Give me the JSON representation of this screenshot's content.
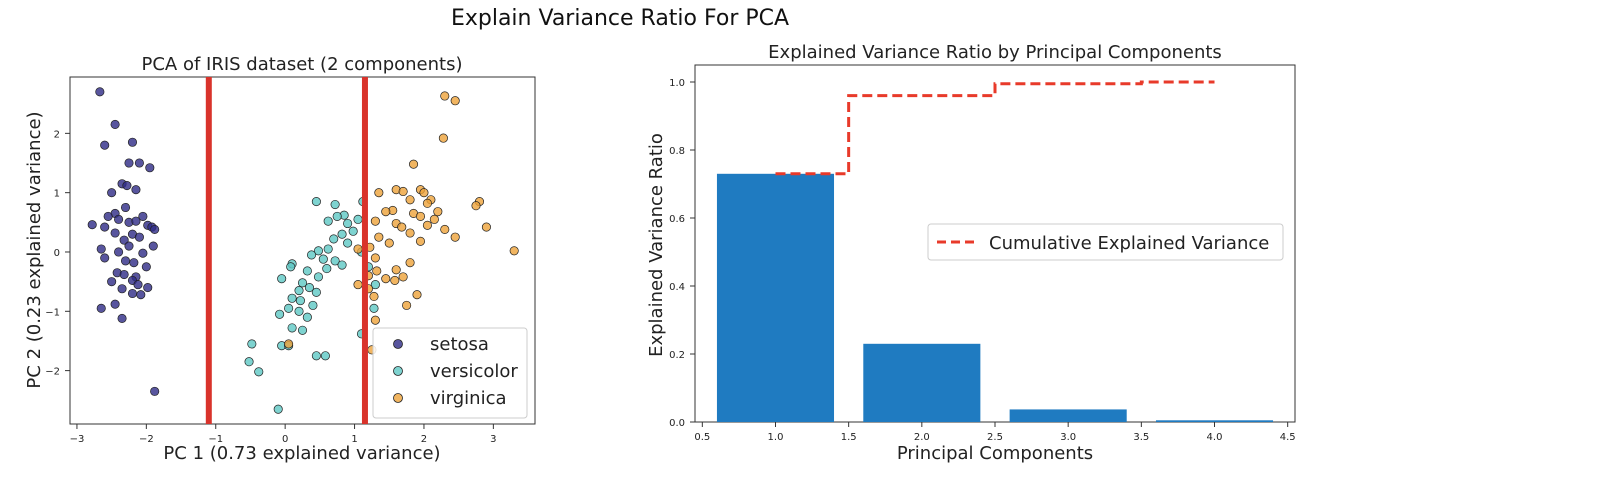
{
  "page": {
    "title": "Explain Variance Ratio For PCA"
  },
  "colors": {
    "setosa": "#2e2a86",
    "versicolor": "#5ec8c4",
    "virginica": "#eea23a",
    "bar": "#1f7bc1",
    "cumulative": "#e83a2a",
    "vline": "#d9332b"
  },
  "chart_data": [
    {
      "type": "scatter",
      "title": "PCA of IRIS dataset (2 components)",
      "xlabel": "PC 1 (0.73 explained variance)",
      "ylabel": "PC 2 (0.23 explained variance)",
      "xlim": [
        -3.1,
        3.6
      ],
      "ylim": [
        -2.9,
        2.95
      ],
      "xticks": [
        -3,
        -2,
        -1,
        0,
        1,
        2,
        3
      ],
      "yticks": [
        -2,
        -1,
        0,
        1,
        2
      ],
      "xtick_labels": [
        "−3",
        "−2",
        "−1",
        "0",
        "1",
        "2",
        "3"
      ],
      "ytick_labels": [
        "−2",
        "−1",
        "0",
        "1",
        "2"
      ],
      "vertical_lines": [
        -1.1,
        1.15
      ],
      "legend": {
        "position": "lower-right",
        "entries": [
          "setosa",
          "versicolor",
          "virginica"
        ]
      },
      "series": [
        {
          "name": "setosa",
          "points": [
            [
              -2.67,
              2.7
            ],
            [
              -2.45,
              2.15
            ],
            [
              -2.6,
              1.8
            ],
            [
              -2.2,
              1.85
            ],
            [
              -2.25,
              1.5
            ],
            [
              -2.1,
              1.5
            ],
            [
              -1.95,
              1.42
            ],
            [
              -2.35,
              1.15
            ],
            [
              -2.28,
              1.12
            ],
            [
              -2.5,
              1.0
            ],
            [
              -2.15,
              1.05
            ],
            [
              -2.45,
              0.65
            ],
            [
              -2.3,
              0.75
            ],
            [
              -2.55,
              0.6
            ],
            [
              -2.05,
              0.6
            ],
            [
              -2.4,
              0.55
            ],
            [
              -2.25,
              0.5
            ],
            [
              -2.15,
              0.52
            ],
            [
              -1.98,
              0.45
            ],
            [
              -1.92,
              0.42
            ],
            [
              -1.88,
              0.38
            ],
            [
              -2.78,
              0.46
            ],
            [
              -2.6,
              0.42
            ],
            [
              -2.45,
              0.32
            ],
            [
              -2.2,
              0.3
            ],
            [
              -2.1,
              0.25
            ],
            [
              -2.32,
              0.2
            ],
            [
              -2.25,
              0.1
            ],
            [
              -1.9,
              0.1
            ],
            [
              -2.65,
              0.05
            ],
            [
              -2.4,
              0.0
            ],
            [
              -2.05,
              -0.02
            ],
            [
              -2.6,
              -0.1
            ],
            [
              -2.3,
              -0.15
            ],
            [
              -2.18,
              -0.18
            ],
            [
              -2.0,
              -0.25
            ],
            [
              -2.42,
              -0.35
            ],
            [
              -2.32,
              -0.38
            ],
            [
              -2.15,
              -0.42
            ],
            [
              -2.5,
              -0.5
            ],
            [
              -2.2,
              -0.48
            ],
            [
              -2.12,
              -0.55
            ],
            [
              -2.35,
              -0.62
            ],
            [
              -1.98,
              -0.6
            ],
            [
              -2.2,
              -0.7
            ],
            [
              -2.08,
              -0.72
            ],
            [
              -2.45,
              -0.88
            ],
            [
              -2.65,
              -0.95
            ],
            [
              -2.35,
              -1.12
            ],
            [
              -1.88,
              -2.35
            ]
          ]
        },
        {
          "name": "versicolor",
          "points": [
            [
              0.45,
              0.85
            ],
            [
              0.72,
              0.8
            ],
            [
              0.85,
              0.62
            ],
            [
              0.75,
              0.6
            ],
            [
              0.62,
              0.52
            ],
            [
              0.9,
              0.48
            ],
            [
              1.05,
              0.55
            ],
            [
              0.98,
              0.35
            ],
            [
              0.82,
              0.3
            ],
            [
              0.7,
              0.22
            ],
            [
              0.9,
              0.15
            ],
            [
              0.62,
              0.05
            ],
            [
              0.48,
              0.02
            ],
            [
              0.38,
              -0.05
            ],
            [
              0.55,
              -0.12
            ],
            [
              0.72,
              -0.15
            ],
            [
              0.82,
              -0.22
            ],
            [
              0.1,
              -0.2
            ],
            [
              0.08,
              -0.25
            ],
            [
              0.6,
              -0.28
            ],
            [
              0.32,
              -0.32
            ],
            [
              0.48,
              -0.42
            ],
            [
              -0.05,
              -0.45
            ],
            [
              0.25,
              -0.52
            ],
            [
              0.35,
              -0.6
            ],
            [
              0.45,
              -0.68
            ],
            [
              0.2,
              -0.65
            ],
            [
              0.1,
              -0.78
            ],
            [
              0.22,
              -0.82
            ],
            [
              0.4,
              -0.9
            ],
            [
              0.05,
              -0.95
            ],
            [
              0.2,
              -1.0
            ],
            [
              -0.08,
              -1.05
            ],
            [
              0.32,
              -1.1
            ],
            [
              0.1,
              -1.28
            ],
            [
              0.25,
              -1.32
            ],
            [
              -0.05,
              -1.58
            ],
            [
              0.05,
              -1.58
            ],
            [
              -0.48,
              -1.55
            ],
            [
              0.45,
              -1.75
            ],
            [
              0.58,
              -1.75
            ],
            [
              -0.52,
              -1.85
            ],
            [
              -0.38,
              -2.02
            ],
            [
              -0.1,
              -2.65
            ],
            [
              1.1,
              -1.38
            ],
            [
              1.28,
              -0.95
            ],
            [
              1.3,
              -0.55
            ],
            [
              1.2,
              -0.25
            ],
            [
              1.1,
              0.0
            ],
            [
              1.12,
              0.85
            ]
          ]
        },
        {
          "name": "virginica",
          "points": [
            [
              2.3,
              2.63
            ],
            [
              2.45,
              2.55
            ],
            [
              2.28,
              1.92
            ],
            [
              1.85,
              1.48
            ],
            [
              1.6,
              1.05
            ],
            [
              1.7,
              1.02
            ],
            [
              1.35,
              1.0
            ],
            [
              1.95,
              1.05
            ],
            [
              2.0,
              1.0
            ],
            [
              2.1,
              0.88
            ],
            [
              1.8,
              0.88
            ],
            [
              2.05,
              0.82
            ],
            [
              2.8,
              0.85
            ],
            [
              2.75,
              0.78
            ],
            [
              1.55,
              0.7
            ],
            [
              1.45,
              0.68
            ],
            [
              2.2,
              0.68
            ],
            [
              1.85,
              0.65
            ],
            [
              1.95,
              0.6
            ],
            [
              2.15,
              0.55
            ],
            [
              1.3,
              0.52
            ],
            [
              1.6,
              0.48
            ],
            [
              2.05,
              0.45
            ],
            [
              1.68,
              0.42
            ],
            [
              2.3,
              0.38
            ],
            [
              1.8,
              0.32
            ],
            [
              2.9,
              0.42
            ],
            [
              1.35,
              0.25
            ],
            [
              2.45,
              0.25
            ],
            [
              1.95,
              0.18
            ],
            [
              1.5,
              0.15
            ],
            [
              1.22,
              0.08
            ],
            [
              1.05,
              0.05
            ],
            [
              1.3,
              -0.1
            ],
            [
              1.8,
              -0.18
            ],
            [
              1.6,
              -0.3
            ],
            [
              1.32,
              -0.32
            ],
            [
              1.2,
              -0.4
            ],
            [
              1.7,
              -0.42
            ],
            [
              1.45,
              -0.45
            ],
            [
              1.58,
              -0.48
            ],
            [
              1.05,
              -0.55
            ],
            [
              1.2,
              -0.62
            ],
            [
              1.28,
              -0.75
            ],
            [
              1.9,
              -0.72
            ],
            [
              1.75,
              -0.9
            ],
            [
              1.3,
              -1.15
            ],
            [
              0.05,
              -1.55
            ],
            [
              1.25,
              -1.65
            ],
            [
              3.3,
              0.02
            ]
          ]
        }
      ]
    },
    {
      "type": "bar",
      "title": "Explained Variance Ratio by Principal Components",
      "xlabel": "Principal Components",
      "ylabel": "Explained Variance Ratio",
      "xlim": [
        0.45,
        4.55
      ],
      "ylim": [
        0.0,
        1.05
      ],
      "xticks": [
        0.5,
        1.0,
        1.5,
        2.0,
        2.5,
        3.0,
        3.5,
        4.0,
        4.5
      ],
      "yticks": [
        0.0,
        0.2,
        0.4,
        0.6,
        0.8,
        1.0
      ],
      "xtick_labels": [
        "0.5",
        "1.0",
        "1.5",
        "2.0",
        "2.5",
        "3.0",
        "3.5",
        "4.0",
        "4.5"
      ],
      "ytick_labels": [
        "0.0",
        "0.2",
        "0.4",
        "0.6",
        "0.8",
        "1.0"
      ],
      "categories": [
        1,
        2,
        3,
        4
      ],
      "values": [
        0.73,
        0.23,
        0.037,
        0.005
      ],
      "cumulative": {
        "name": "Cumulative Explained Variance",
        "x": [
          1,
          2,
          3,
          4
        ],
        "values": [
          0.73,
          0.96,
          0.995,
          1.0
        ],
        "style": "dashed-step"
      },
      "legend": {
        "position": "center-right",
        "entries": [
          "Cumulative Explained Variance"
        ]
      }
    }
  ]
}
